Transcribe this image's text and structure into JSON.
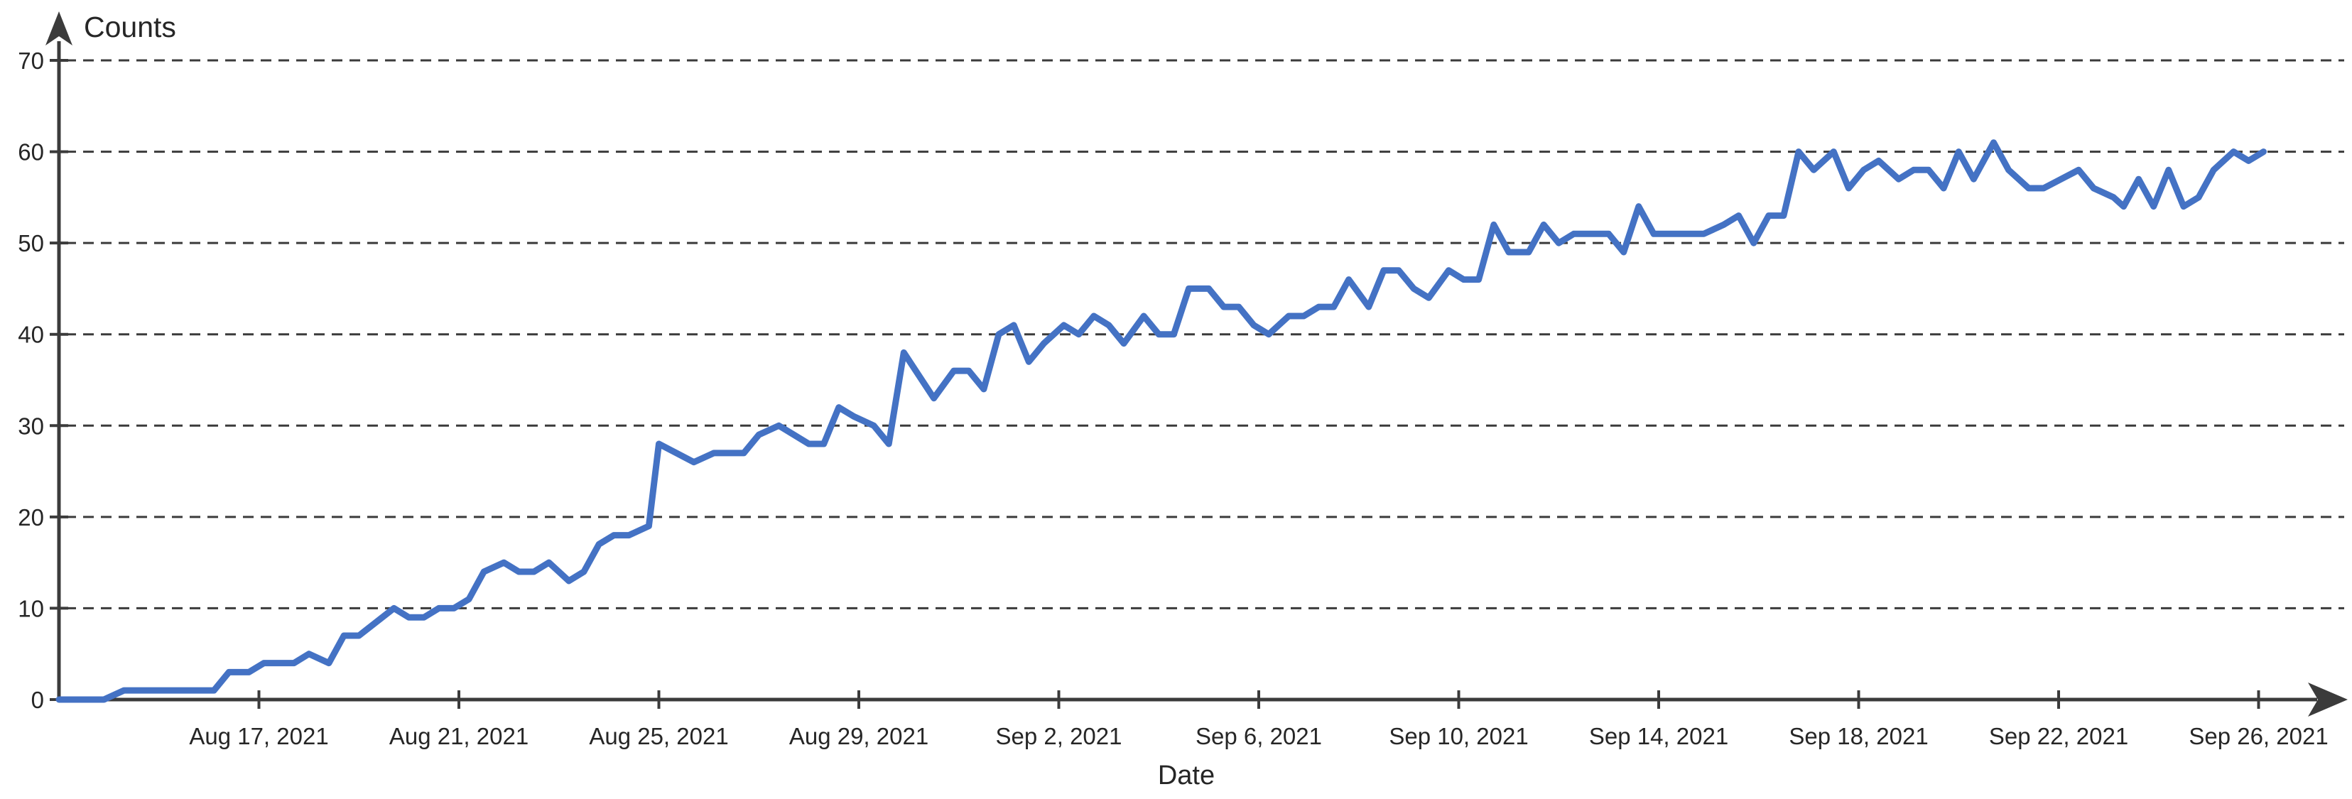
{
  "chart_data": {
    "type": "line",
    "title": "",
    "xlabel": "Date",
    "ylabel": "Counts",
    "legend": "none",
    "grid": "horizontal-dashed",
    "x_start_date": "Aug 13, 2021",
    "x_unit": "days since Aug 13, 2021",
    "x_ticks": [
      {
        "day": 4,
        "label": "Aug 17, 2021"
      },
      {
        "day": 8,
        "label": "Aug 21, 2021"
      },
      {
        "day": 12,
        "label": "Aug 25, 2021"
      },
      {
        "day": 16,
        "label": "Aug 29, 2021"
      },
      {
        "day": 20,
        "label": "Sep 2, 2021"
      },
      {
        "day": 24,
        "label": "Sep 6, 2021"
      },
      {
        "day": 28,
        "label": "Sep 10, 2021"
      },
      {
        "day": 32,
        "label": "Sep 14, 2021"
      },
      {
        "day": 36,
        "label": "Sep 18, 2021"
      },
      {
        "day": 40,
        "label": "Sep 22, 2021"
      },
      {
        "day": 44,
        "label": "Sep 26, 2021"
      }
    ],
    "y_ticks": [
      0,
      10,
      20,
      30,
      40,
      50,
      60,
      70
    ],
    "ylim": [
      0,
      74
    ],
    "xlim_days": [
      -0.3,
      45.8
    ],
    "colors": {
      "line": "#4472C4",
      "axis": "#3B3B3B",
      "grid": "#3B3B3B",
      "text": "#262626"
    },
    "series_name": "Counts",
    "points": [
      [
        0,
        0
      ],
      [
        0.9,
        0
      ],
      [
        1.3,
        1
      ],
      [
        3.1,
        1
      ],
      [
        3.4,
        3
      ],
      [
        3.8,
        3
      ],
      [
        4.1,
        4
      ],
      [
        4.7,
        4
      ],
      [
        5,
        5
      ],
      [
        5.4,
        4
      ],
      [
        5.7,
        7
      ],
      [
        6,
        7
      ],
      [
        6.7,
        10
      ],
      [
        7,
        9
      ],
      [
        7.3,
        9
      ],
      [
        7.6,
        10
      ],
      [
        7.9,
        10
      ],
      [
        8.2,
        11
      ],
      [
        8.5,
        14
      ],
      [
        8.9,
        15
      ],
      [
        9.2,
        14
      ],
      [
        9.5,
        14
      ],
      [
        9.8,
        15
      ],
      [
        10.2,
        13
      ],
      [
        10.5,
        14
      ],
      [
        10.8,
        17
      ],
      [
        11.1,
        18
      ],
      [
        11.4,
        18
      ],
      [
        11.8,
        19
      ],
      [
        12,
        28
      ],
      [
        12.7,
        26
      ],
      [
        13.1,
        27
      ],
      [
        13.7,
        27
      ],
      [
        14,
        29
      ],
      [
        14.4,
        30
      ],
      [
        14.7,
        29
      ],
      [
        15,
        28
      ],
      [
        15.3,
        28
      ],
      [
        15.6,
        32
      ],
      [
        15.9,
        31
      ],
      [
        16.3,
        30
      ],
      [
        16.6,
        28
      ],
      [
        16.9,
        38
      ],
      [
        17.5,
        33
      ],
      [
        17.9,
        36
      ],
      [
        18.2,
        36
      ],
      [
        18.5,
        34
      ],
      [
        18.8,
        40
      ],
      [
        19.1,
        41
      ],
      [
        19.4,
        37
      ],
      [
        19.7,
        39
      ],
      [
        20.1,
        41
      ],
      [
        20.4,
        40
      ],
      [
        20.7,
        42
      ],
      [
        21,
        41
      ],
      [
        21.3,
        39
      ],
      [
        21.7,
        42
      ],
      [
        22,
        40
      ],
      [
        22.3,
        40
      ],
      [
        22.6,
        45
      ],
      [
        23,
        45
      ],
      [
        23.3,
        43
      ],
      [
        23.6,
        43
      ],
      [
        23.9,
        41
      ],
      [
        24.2,
        40
      ],
      [
        24.6,
        42
      ],
      [
        24.9,
        42
      ],
      [
        25.2,
        43
      ],
      [
        25.5,
        43
      ],
      [
        25.8,
        46
      ],
      [
        26.2,
        43
      ],
      [
        26.5,
        47
      ],
      [
        26.8,
        47
      ],
      [
        27.1,
        45
      ],
      [
        27.4,
        44
      ],
      [
        27.8,
        47
      ],
      [
        28.1,
        46
      ],
      [
        28.4,
        46
      ],
      [
        28.7,
        52
      ],
      [
        29,
        49
      ],
      [
        29.4,
        49
      ],
      [
        29.7,
        52
      ],
      [
        30,
        50
      ],
      [
        30.3,
        51
      ],
      [
        31,
        51
      ],
      [
        31.3,
        49
      ],
      [
        31.6,
        54
      ],
      [
        31.9,
        51
      ],
      [
        32.9,
        51
      ],
      [
        33.3,
        52
      ],
      [
        33.6,
        53
      ],
      [
        33.9,
        50
      ],
      [
        34.2,
        53
      ],
      [
        34.5,
        53
      ],
      [
        34.8,
        60
      ],
      [
        35.1,
        58
      ],
      [
        35.5,
        60
      ],
      [
        35.8,
        56
      ],
      [
        36.1,
        58
      ],
      [
        36.4,
        59
      ],
      [
        36.8,
        57
      ],
      [
        37.1,
        58
      ],
      [
        37.4,
        58
      ],
      [
        37.7,
        56
      ],
      [
        38,
        60
      ],
      [
        38.3,
        57
      ],
      [
        38.7,
        61
      ],
      [
        39,
        58
      ],
      [
        39.4,
        56
      ],
      [
        39.7,
        56
      ],
      [
        40.4,
        58
      ],
      [
        40.7,
        56
      ],
      [
        41.1,
        55
      ],
      [
        41.3,
        54
      ],
      [
        41.6,
        57
      ],
      [
        41.9,
        54
      ],
      [
        42.2,
        58
      ],
      [
        42.5,
        54
      ],
      [
        42.8,
        55
      ],
      [
        43.1,
        58
      ],
      [
        43.5,
        60
      ],
      [
        43.8,
        59
      ],
      [
        44.1,
        60
      ]
    ]
  }
}
